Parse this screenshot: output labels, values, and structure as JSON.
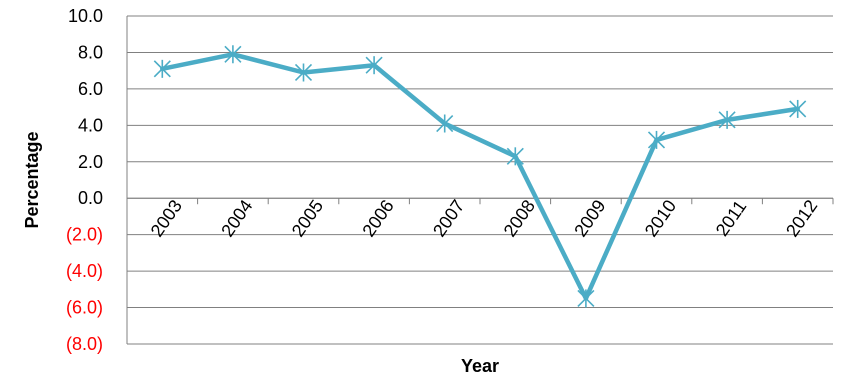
{
  "chart_data": {
    "type": "line",
    "title": "",
    "xlabel": "Year",
    "ylabel": "Percentage",
    "categories": [
      "2003",
      "2004",
      "2005",
      "2006",
      "2007",
      "2008",
      "2009",
      "2010",
      "2011",
      "2012"
    ],
    "series": [
      {
        "values": [
          7.1,
          7.9,
          6.9,
          7.3,
          4.1,
          2.3,
          -5.5,
          3.2,
          4.3,
          4.9
        ],
        "color": "#4bacc6",
        "marker": "asterisk"
      }
    ],
    "ylim": [
      -8,
      10
    ],
    "ystep": 2,
    "ytick_labels": [
      "10.0",
      "8.0",
      "6.0",
      "4.0",
      "2.0",
      "0.0",
      "(2.0)",
      "(4.0)",
      "(6.0)",
      "(8.0)"
    ],
    "negative_tick_color": "#ff0000",
    "grid": true,
    "legend": "none"
  }
}
